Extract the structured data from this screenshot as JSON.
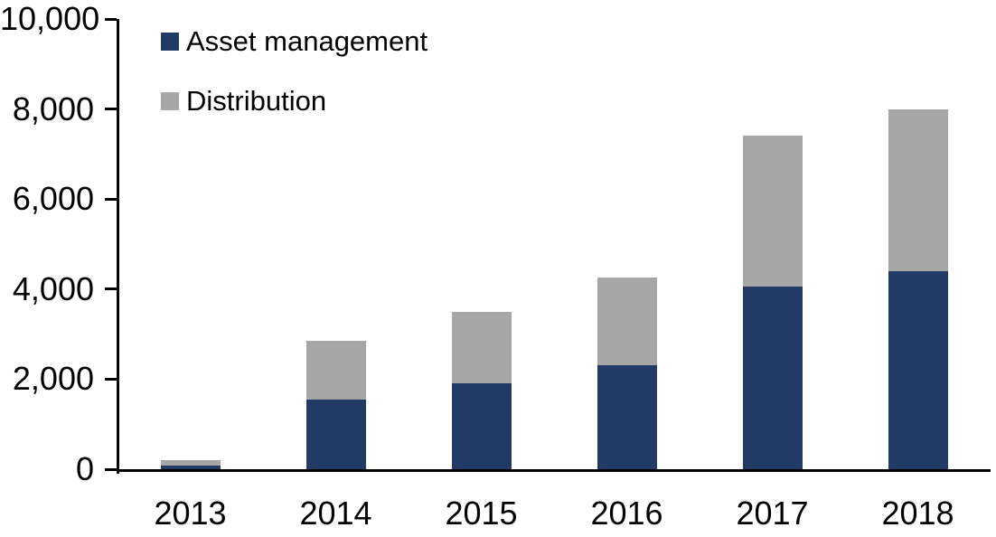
{
  "chart_data": {
    "type": "bar",
    "stacked": true,
    "title": "",
    "xlabel": "",
    "ylabel": "",
    "categories": [
      "2013",
      "2014",
      "2015",
      "2016",
      "2017",
      "2018"
    ],
    "series": [
      {
        "name": "Asset management",
        "color": "#213a66",
        "values": [
          80,
          1550,
          1900,
          2300,
          4050,
          4400
        ]
      },
      {
        "name": "Distribution",
        "color": "#a6a6a6",
        "values": [
          120,
          1300,
          1600,
          1950,
          3350,
          3600
        ]
      }
    ],
    "totals": [
      200,
      2850,
      3500,
      4250,
      7400,
      8000
    ],
    "ylim": [
      0,
      10000
    ],
    "ytick_interval": 2000,
    "ytick_labels": [
      "0",
      "2,000",
      "4,000",
      "6,000",
      "8,000",
      "10,000"
    ],
    "grid": false,
    "legend_position": "top-left-inside"
  },
  "colors": {
    "axis": "#000000",
    "text": "#000000",
    "background": "#ffffff",
    "asset_management": "#213a66",
    "distribution": "#a6a6a6"
  }
}
